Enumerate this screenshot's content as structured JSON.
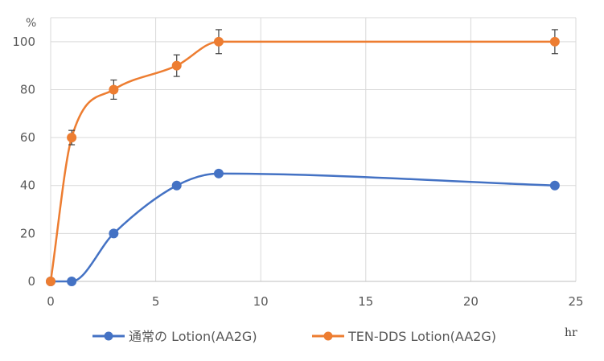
{
  "chart_data": {
    "type": "line",
    "y_unit": "%",
    "x_unit": "hr",
    "xlim": [
      0,
      25
    ],
    "ylim": [
      0,
      110
    ],
    "x_ticks": [
      0,
      5,
      10,
      15,
      20,
      25
    ],
    "y_ticks": [
      0,
      20,
      40,
      60,
      80,
      100
    ],
    "x_tick_labels": [
      "0",
      "5",
      "10",
      "15",
      "20",
      "25"
    ],
    "y_tick_labels": [
      "0",
      "20",
      "40",
      "60",
      "80",
      "100"
    ],
    "grid": true,
    "legend_position": "bottom",
    "series": [
      {
        "name": "通常の Lotion(AA2G)",
        "color": "#4472C4",
        "x": [
          0,
          1,
          3,
          6,
          8,
          24
        ],
        "y": [
          0,
          0,
          20,
          40,
          45,
          40
        ]
      },
      {
        "name": "TEN-DDS Lotion(AA2G)",
        "color": "#ED7D31",
        "x": [
          0,
          1,
          3,
          6,
          8,
          24
        ],
        "y": [
          0,
          60,
          80,
          90,
          100,
          100
        ],
        "error": [
          0,
          3,
          4,
          4.5,
          5,
          5
        ]
      }
    ]
  }
}
